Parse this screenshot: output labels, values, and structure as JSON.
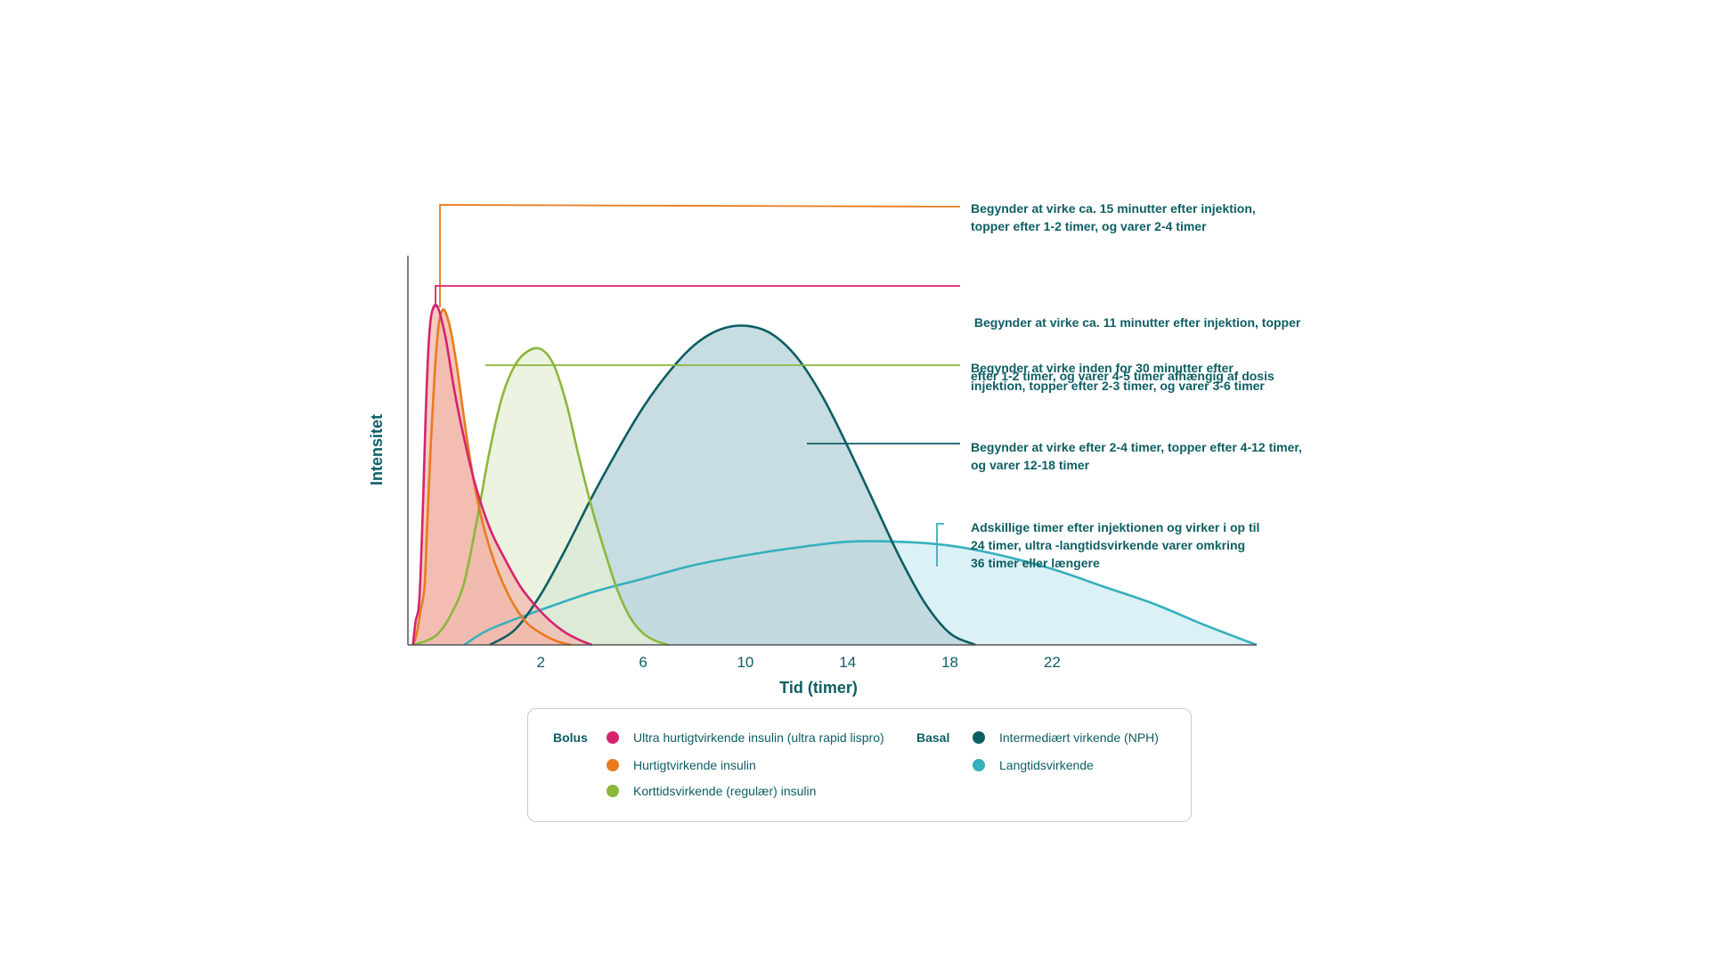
{
  "chart_data": {
    "type": "area",
    "xlabel": "Tid (timer)",
    "ylabel": "Intensitet",
    "xlim": [
      -3.2,
      30
    ],
    "ylim": [
      0,
      100
    ],
    "xticks": [
      2,
      6,
      10,
      14,
      18,
      22
    ],
    "grid": false,
    "legend_position": "bottom",
    "series": [
      {
        "name": "Ultra hurtigtvirkende insulin (ultra rapid lispro)",
        "group": "Bolus",
        "color": "#d6246e",
        "fill": "#f2b9b0",
        "points": [
          [
            -3,
            0
          ],
          [
            -2.9,
            6
          ],
          [
            -2.75,
            12
          ],
          [
            -2.6,
            38
          ],
          [
            -2.5,
            60
          ],
          [
            -2.4,
            76
          ],
          [
            -2.3,
            84
          ],
          [
            -2.18,
            87
          ],
          [
            -2.05,
            87
          ],
          [
            -1.9,
            84
          ],
          [
            -1.7,
            78
          ],
          [
            -1.4,
            66
          ],
          [
            -1.1,
            56
          ],
          [
            -0.6,
            42
          ],
          [
            0,
            30
          ],
          [
            0.6,
            22
          ],
          [
            1.2,
            15
          ],
          [
            1.8,
            10
          ],
          [
            2.4,
            6
          ],
          [
            3,
            3
          ],
          [
            3.6,
            1
          ],
          [
            4,
            0
          ]
        ]
      },
      {
        "name": "Hurtigtvirkende insulin",
        "group": "Bolus",
        "color": "#e87b1e",
        "fill": "#f2b49a",
        "points": [
          [
            -3,
            0
          ],
          [
            -2.85,
            3
          ],
          [
            -2.7,
            9
          ],
          [
            -2.55,
            15
          ],
          [
            -2.45,
            30
          ],
          [
            -2.3,
            52
          ],
          [
            -2.15,
            70
          ],
          [
            -2,
            82
          ],
          [
            -1.85,
            86
          ],
          [
            -1.7,
            85
          ],
          [
            -1.5,
            80
          ],
          [
            -1.25,
            70
          ],
          [
            -1,
            58
          ],
          [
            -0.7,
            45
          ],
          [
            -0.3,
            32
          ],
          [
            0.2,
            21
          ],
          [
            0.8,
            12
          ],
          [
            1.4,
            6
          ],
          [
            2,
            3
          ],
          [
            2.6,
            1
          ],
          [
            3.2,
            0
          ]
        ]
      },
      {
        "name": "Korttidsvirkende (regulær) insulin",
        "group": "Bolus",
        "color": "#8cb73d",
        "fill": "#e6efd6",
        "points": [
          [
            -3,
            0
          ],
          [
            -2.5,
            1
          ],
          [
            -2,
            3
          ],
          [
            -1.5,
            8
          ],
          [
            -1,
            16
          ],
          [
            -0.5,
            32
          ],
          [
            0,
            50
          ],
          [
            0.5,
            64
          ],
          [
            1,
            72
          ],
          [
            1.5,
            75.5
          ],
          [
            2,
            76
          ],
          [
            2.5,
            72
          ],
          [
            3,
            62
          ],
          [
            3.5,
            48
          ],
          [
            4,
            35
          ],
          [
            4.5,
            24
          ],
          [
            5,
            14
          ],
          [
            5.5,
            7
          ],
          [
            6,
            3
          ],
          [
            6.5,
            1
          ],
          [
            7,
            0
          ]
        ]
      },
      {
        "name": "Intermediært virkende (NPH)",
        "group": "Basal",
        "color": "#0d5e63",
        "fill": "#bed7dc",
        "points": [
          [
            0,
            0
          ],
          [
            1,
            4
          ],
          [
            2,
            13
          ],
          [
            3,
            25
          ],
          [
            4,
            38
          ],
          [
            5,
            50
          ],
          [
            6,
            61
          ],
          [
            7,
            70
          ],
          [
            8,
            77
          ],
          [
            9,
            81
          ],
          [
            10,
            82
          ],
          [
            11,
            80
          ],
          [
            12,
            74
          ],
          [
            13,
            64
          ],
          [
            14,
            51
          ],
          [
            15,
            37
          ],
          [
            16,
            23
          ],
          [
            17,
            11
          ],
          [
            18,
            3
          ],
          [
            19,
            0
          ]
        ]
      },
      {
        "name": "Langtidsvirkende",
        "group": "Basal",
        "color": "#35b0bd",
        "fill": "#d5eef3",
        "points": [
          [
            -1,
            0
          ],
          [
            0,
            4
          ],
          [
            2,
            9
          ],
          [
            4,
            13.5
          ],
          [
            6,
            17
          ],
          [
            8,
            20.5
          ],
          [
            10,
            23
          ],
          [
            12,
            25
          ],
          [
            14,
            26.5
          ],
          [
            16,
            26.5
          ],
          [
            18,
            25.5
          ],
          [
            20,
            23
          ],
          [
            22,
            19.5
          ],
          [
            24,
            15
          ],
          [
            26,
            10.5
          ],
          [
            28,
            5
          ],
          [
            30,
            0
          ]
        ]
      }
    ],
    "annotations": [
      {
        "text_lines": [
          "Begynder at virke ca. 15 minutter efter injektion,",
          "topper efter 1-2 timer, og varer 2-4 timer"
        ],
        "series": "Hurtigtvirkende insulin",
        "color": "#e87b1e"
      },
      {
        "text_lines": [
          " Begynder at virke ca. 11 minutter efter injektion, topper",
          "efter 1-2 timer, og varer 4-5 timer afhængig af dosis"
        ],
        "series": "Ultra hurtigtvirkende insulin (ultra rapid lispro)",
        "color": "#d6246e"
      },
      {
        "text_lines": [
          "Begynder at virke inden for 30 minutter efter",
          "injektion, topper efter 2-3 timer, og varer 3-6 timer"
        ],
        "series": "Korttidsvirkende (regulær) insulin",
        "color": "#8cb73d"
      },
      {
        "text_lines": [
          "Begynder at virke efter 2-4 timer, topper efter 4-12 timer,",
          "og varer 12-18 timer"
        ],
        "series": "Intermediært virkende (NPH)",
        "color": "#0d5e63"
      },
      {
        "text_lines": [
          "Adskillige timer efter injektionen og virker i op til",
          "24 timer, ultra -langtidsvirkende varer omkring",
          "36 timer eller længere"
        ],
        "series": "Langtidsvirkende",
        "color": "#35b0bd"
      }
    ]
  },
  "legend": {
    "bolus_label": "Bolus",
    "basal_label": "Basal",
    "items": [
      {
        "label": "Ultra hurtigtvirkende insulin (ultra rapid lispro)",
        "color": "#d6246e"
      },
      {
        "label": "Hurtigtvirkende insulin",
        "color": "#e87b1e"
      },
      {
        "label": "Korttidsvirkende (regulær) insulin",
        "color": "#8cb73d"
      },
      {
        "label": "Intermediært virkende (NPH)",
        "color": "#0d5e63"
      },
      {
        "label": "Langtidsvirkende",
        "color": "#35b0bd"
      }
    ]
  }
}
